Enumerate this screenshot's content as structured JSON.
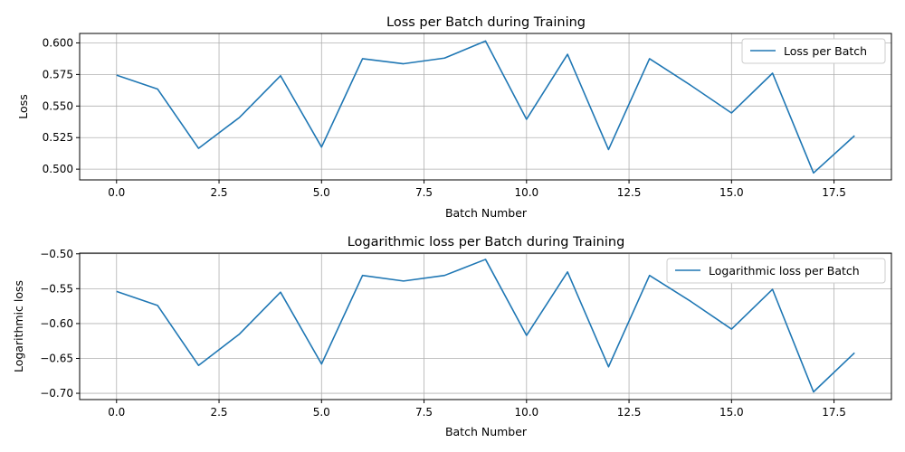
{
  "chart_data": [
    {
      "type": "line",
      "title": "Loss per Batch during Training",
      "xlabel": "Batch Number",
      "ylabel": "Loss",
      "xlim": [
        -0.9,
        18.9
      ],
      "ylim": [
        0.4915,
        0.6075
      ],
      "xticks": [
        0.0,
        2.5,
        5.0,
        7.5,
        10.0,
        12.5,
        15.0,
        17.5
      ],
      "yticks": [
        0.5,
        0.525,
        0.55,
        0.575,
        0.6
      ],
      "xtick_labels": [
        "0.0",
        "2.5",
        "5.0",
        "7.5",
        "10.0",
        "12.5",
        "15.0",
        "17.5"
      ],
      "ytick_labels": [
        "0.500",
        "0.525",
        "0.550",
        "0.575",
        "0.600"
      ],
      "grid": true,
      "legend_position": "top-right",
      "x": [
        0,
        1,
        2,
        3,
        4,
        5,
        6,
        7,
        8,
        9,
        10,
        11,
        12,
        13,
        14,
        15,
        16,
        17,
        18
      ],
      "series": [
        {
          "name": "Loss per Batch",
          "color": "#1f77b4",
          "values": [
            0.5745,
            0.5635,
            0.5165,
            0.541,
            0.574,
            0.5175,
            0.5875,
            0.5835,
            0.588,
            0.6015,
            0.5395,
            0.591,
            0.5155,
            0.5875,
            0.5665,
            0.5445,
            0.576,
            0.497,
            0.5265
          ]
        }
      ]
    },
    {
      "type": "line",
      "title": "Logarithmic loss per Batch during Training",
      "xlabel": "Batch Number",
      "ylabel": "Logarithmic loss",
      "xlim": [
        -0.9,
        18.9
      ],
      "ylim": [
        -0.709,
        -0.499
      ],
      "xticks": [
        0.0,
        2.5,
        5.0,
        7.5,
        10.0,
        12.5,
        15.0,
        17.5
      ],
      "yticks": [
        -0.7,
        -0.65,
        -0.6,
        -0.55,
        -0.5
      ],
      "xtick_labels": [
        "0.0",
        "2.5",
        "5.0",
        "7.5",
        "10.0",
        "12.5",
        "15.0",
        "17.5"
      ],
      "ytick_labels": [
        "−0.70",
        "−0.65",
        "−0.60",
        "−0.55",
        "−0.50"
      ],
      "grid": true,
      "legend_position": "top-right",
      "x": [
        0,
        1,
        2,
        3,
        4,
        5,
        6,
        7,
        8,
        9,
        10,
        11,
        12,
        13,
        14,
        15,
        16,
        17,
        18
      ],
      "series": [
        {
          "name": "Logarithmic loss per Batch",
          "color": "#1f77b4",
          "values": [
            -0.554,
            -0.574,
            -0.66,
            -0.615,
            -0.555,
            -0.658,
            -0.531,
            -0.539,
            -0.531,
            -0.508,
            -0.617,
            -0.526,
            -0.662,
            -0.531,
            -0.568,
            -0.608,
            -0.551,
            -0.698,
            -0.642
          ]
        }
      ]
    }
  ]
}
